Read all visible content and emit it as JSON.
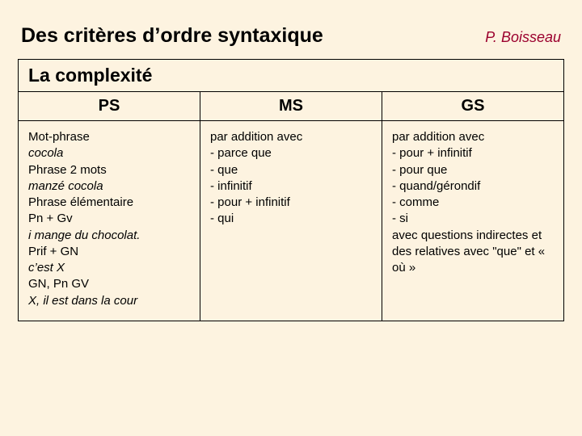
{
  "colors": {
    "background": "#fdf3e0",
    "text": "#000000",
    "accent": "#9b002e",
    "border": "#000000"
  },
  "typography": {
    "title_fontsize": 25,
    "author_fontsize": 18,
    "section_header_fontsize": 23,
    "col_header_fontsize": 20,
    "body_fontsize": 15
  },
  "header": {
    "title": "Des critères d’ordre syntaxique",
    "author": "P. Boisseau"
  },
  "table": {
    "section_title": "La complexité",
    "columns": [
      "PS",
      "MS",
      "GS"
    ],
    "cells": {
      "ps": [
        {
          "text": "Mot-phrase",
          "italic": false
        },
        {
          "text": "cocola",
          "italic": true
        },
        {
          "text": "Phrase 2 mots",
          "italic": false
        },
        {
          "text": "manzé cocola",
          "italic": true
        },
        {
          "text": "Phrase élémentaire",
          "italic": false
        },
        {
          "text": "Pn + Gv",
          "italic": false
        },
        {
          "text": "i mange du chocolat.",
          "italic": true
        },
        {
          "text": "Prif + GN",
          "italic": false
        },
        {
          "text": "c’est X",
          "italic": true
        },
        {
          "text": "GN, Pn GV",
          "italic": false
        },
        {
          "text": "X, il est dans la cour",
          "italic": true
        }
      ],
      "ms": [
        {
          "text": "par addition avec",
          "italic": false
        },
        {
          "text": "- parce que",
          "italic": false
        },
        {
          "text": "- que",
          "italic": false
        },
        {
          "text": "- infinitif",
          "italic": false
        },
        {
          "text": "- pour + infinitif",
          "italic": false
        },
        {
          "text": "- qui",
          "italic": false
        }
      ],
      "gs": [
        {
          "text": "par addition avec",
          "italic": false
        },
        {
          "text": "- pour + infinitif",
          "italic": false
        },
        {
          "text": "- pour que",
          "italic": false
        },
        {
          "text": "- quand/gérondif",
          "italic": false
        },
        {
          "text": "- comme",
          "italic": false
        },
        {
          "text": "- si",
          "italic": false
        },
        {
          "text": "avec questions indirectes et des relatives avec \"que\" et « où »",
          "italic": false
        }
      ]
    }
  }
}
